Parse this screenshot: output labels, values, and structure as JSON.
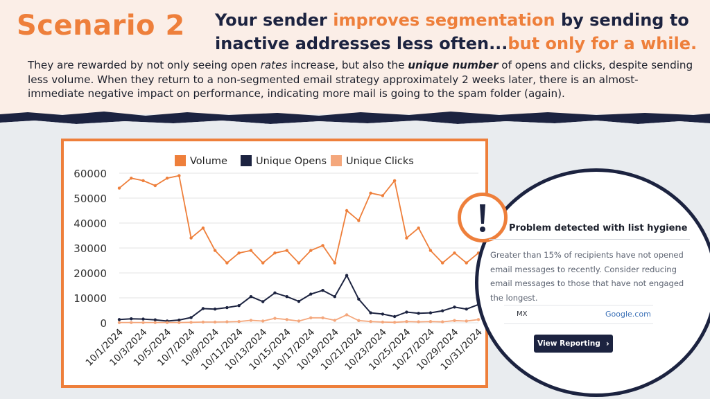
{
  "header": {
    "scenario_title": "Scenario 2",
    "headline_1": "Your sender ",
    "headline_highlight_1": "improves segmentation",
    "headline_2": " by sending to inactive addresses less often...",
    "headline_highlight_2": "but only for a while.",
    "body_1": "They are rewarded by not only seeing open ",
    "body_italic_1": "rates",
    "body_2": " increase, but also the ",
    "body_italic_2": "unique number",
    "body_3": " of opens and clicks, despite sending less volume. When they return to a non-segmented email strategy approximately 2 weeks later, there is an almost-immediate negative impact on performance, indicating more mail is going to the spam folder (again)."
  },
  "colors": {
    "orange": "#ee7f3b",
    "navy": "#1c2340",
    "light_orange": "#f4a77c"
  },
  "chart_data": {
    "type": "line",
    "x": [
      "10/1/2024",
      "10/2/2024",
      "10/3/2024",
      "10/4/2024",
      "10/5/2024",
      "10/6/2024",
      "10/7/2024",
      "10/8/2024",
      "10/9/2024",
      "10/10/2024",
      "10/11/2024",
      "10/12/2024",
      "10/13/2024",
      "10/14/2024",
      "10/15/2024",
      "10/16/2024",
      "10/17/2024",
      "10/18/2024",
      "10/19/2024",
      "10/20/2024",
      "10/21/2024",
      "10/22/2024",
      "10/23/2024",
      "10/24/2024",
      "10/25/2024",
      "10/26/2024",
      "10/27/2024",
      "10/28/2024",
      "10/29/2024",
      "10/30/2024",
      "10/31/2024"
    ],
    "xticks": [
      "10/1/2024",
      "10/3/2024",
      "10/5/2024",
      "10/7/2024",
      "10/9/2024",
      "10/11/2024",
      "10/13/2024",
      "10/15/2024",
      "10/17/2024",
      "10/19/2024",
      "10/21/2024",
      "10/23/2024",
      "10/25/2024",
      "10/27/2024",
      "10/29/2024",
      "10/31/2024"
    ],
    "yticks": [
      0,
      10000,
      20000,
      30000,
      40000,
      50000,
      60000
    ],
    "ylim": [
      0,
      60000
    ],
    "grid": true,
    "legend_position": "top",
    "series": [
      {
        "name": "Volume",
        "color": "#ee7f3b",
        "values": [
          54000,
          58000,
          57000,
          55000,
          58000,
          59000,
          34000,
          38000,
          29000,
          24000,
          28000,
          29000,
          24000,
          28000,
          29000,
          24000,
          29000,
          31000,
          24000,
          45000,
          41000,
          52000,
          51000,
          57000,
          34000,
          38000,
          29000,
          24000,
          28000,
          24000,
          28000
        ]
      },
      {
        "name": "Unique Opens",
        "color": "#1c2340",
        "values": [
          1300,
          1600,
          1500,
          1200,
          700,
          1100,
          2100,
          5700,
          5500,
          6100,
          6900,
          10500,
          8500,
          12000,
          10500,
          8600,
          11500,
          13000,
          10500,
          19000,
          9500,
          4000,
          3500,
          2500,
          4300,
          3800,
          4000,
          4800,
          6300,
          5500,
          7300
        ]
      },
      {
        "name": "Unique Clicks",
        "color": "#f4a77c",
        "values": [
          100,
          100,
          100,
          100,
          100,
          100,
          200,
          300,
          300,
          400,
          500,
          1000,
          700,
          1800,
          1300,
          700,
          2000,
          2000,
          1000,
          3200,
          900,
          500,
          300,
          200,
          500,
          400,
          500,
          400,
          900,
          700,
          1300
        ]
      }
    ]
  },
  "callout": {
    "title": "Problem detected with list hygiene",
    "message": "Greater than 15% of recipients have not opened email messages to recently. Consider reducing email messages to those that have not engaged the longest.",
    "mx_label": "MX",
    "provider": "Google.com",
    "button_label": "View Reporting",
    "alert_icon": "exclamation-icon",
    "chevron_icon": "chevron-right-icon"
  }
}
